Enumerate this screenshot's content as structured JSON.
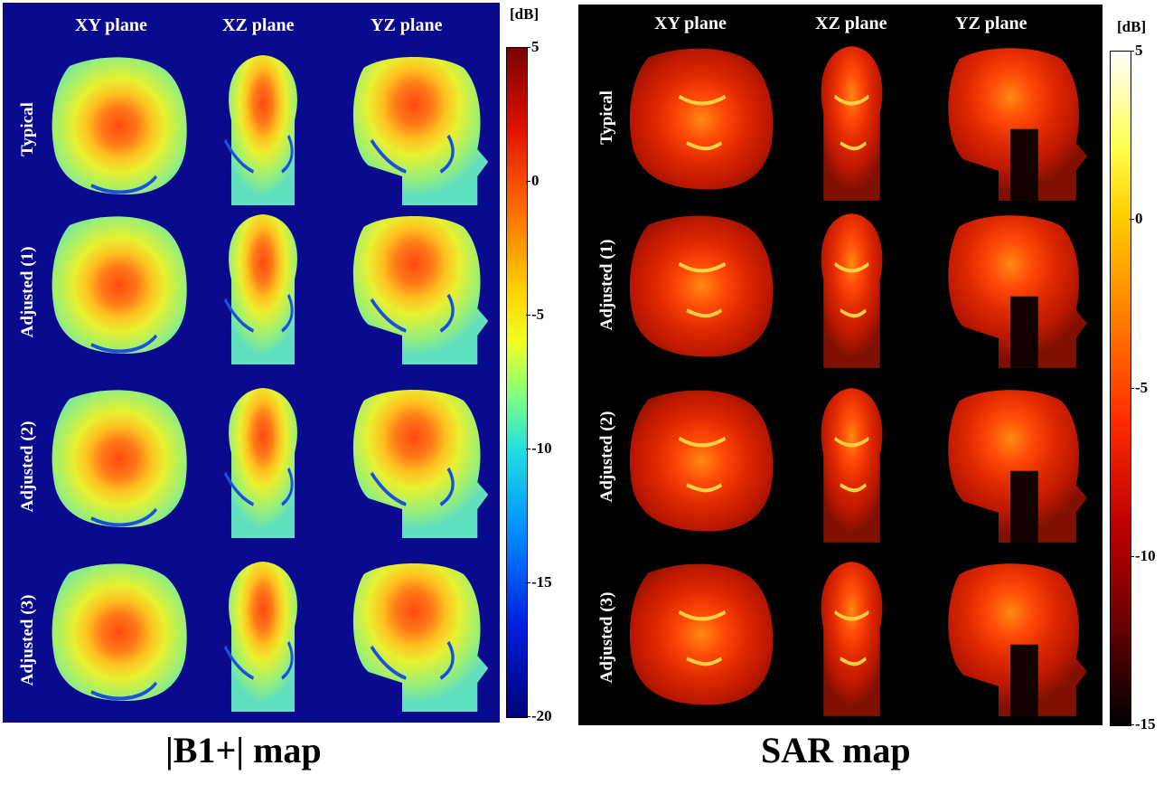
{
  "b1_panel": {
    "caption": "|B1+| map",
    "columns": [
      "XY plane",
      "XZ plane",
      "YZ plane"
    ],
    "rows": [
      "Typical",
      "Adjusted (1)",
      "Adjusted (2)",
      "Adjusted (3)"
    ],
    "colorbar": {
      "unit": "[dB]",
      "ticks": [
        "5",
        "0",
        "-5",
        "-10",
        "-15",
        "-20"
      ],
      "min": -20,
      "max": 5,
      "colormap": "jet"
    }
  },
  "sar_panel": {
    "caption": "SAR map",
    "columns": [
      "XY plane",
      "XZ plane",
      "YZ plane"
    ],
    "rows": [
      "Typical",
      "Adjusted (1)",
      "Adjusted (2)",
      "Adjusted (3)"
    ],
    "colorbar": {
      "unit": "[dB]",
      "ticks": [
        "5",
        "0",
        "-5",
        "-10",
        "-15"
      ],
      "min": -15,
      "max": 5,
      "colormap": "hot"
    }
  },
  "colors": {
    "b1_background": "#0a0a8e",
    "sar_background": "#000000"
  }
}
